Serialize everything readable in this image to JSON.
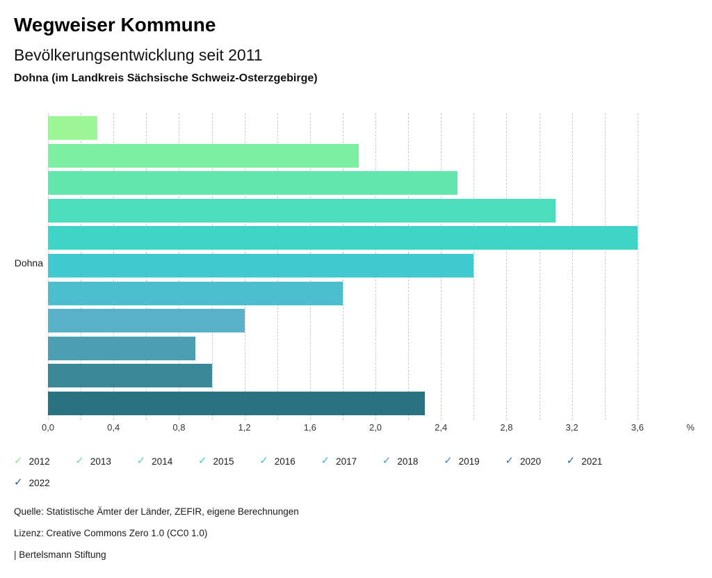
{
  "header": {
    "app_title": "Wegweiser Kommune",
    "chart_title": "Bevölkerungsentwicklung seit 2011",
    "region_subtitle": "Dohna (im Landkreis Sächsische Schweiz-Osterzgebirge)"
  },
  "chart_data": {
    "type": "bar",
    "orientation": "horizontal",
    "title": "Bevölkerungsentwicklung seit 2011",
    "region_label": "Dohna",
    "categories": [
      "2012",
      "2013",
      "2014",
      "2015",
      "2016",
      "2017",
      "2018",
      "2019",
      "2020",
      "2021",
      "2022"
    ],
    "values": [
      0.3,
      1.9,
      2.5,
      3.1,
      3.6,
      2.6,
      1.8,
      1.2,
      0.9,
      1.0,
      2.3
    ],
    "unit": "%",
    "xlim": [
      0,
      3.6
    ],
    "gridline_step": 0.2,
    "grid": "vertical-dashed",
    "x_ticks": [
      {
        "value": 0.0,
        "label": "0,0"
      },
      {
        "value": 0.4,
        "label": "0,4"
      },
      {
        "value": 0.8,
        "label": "0,8"
      },
      {
        "value": 1.2,
        "label": "1,2"
      },
      {
        "value": 1.6,
        "label": "1,6"
      },
      {
        "value": 2.0,
        "label": "2,0"
      },
      {
        "value": 2.4,
        "label": "2,4"
      },
      {
        "value": 2.8,
        "label": "2,8"
      },
      {
        "value": 3.2,
        "label": "3,2"
      },
      {
        "value": 3.6,
        "label": "3,6"
      }
    ],
    "bar_colors": [
      "#9BF795",
      "#7DEFA1",
      "#61E7AD",
      "#4BDEBA",
      "#3ED5C6",
      "#40C9CE",
      "#4DBECD",
      "#57B1C8",
      "#4A9FB2",
      "#3A8897",
      "#2A7181"
    ],
    "legend_position": "bottom"
  },
  "legend": {
    "items": [
      {
        "label": "2012",
        "color": "#8FE98F"
      },
      {
        "label": "2013",
        "color": "#62E09C"
      },
      {
        "label": "2014",
        "color": "#48D9AE"
      },
      {
        "label": "2015",
        "color": "#3BD1C0"
      },
      {
        "label": "2016",
        "color": "#3DC5CF"
      },
      {
        "label": "2017",
        "color": "#45B1D6"
      },
      {
        "label": "2018",
        "color": "#419FD1"
      },
      {
        "label": "2019",
        "color": "#3A8FC4"
      },
      {
        "label": "2020",
        "color": "#3279AD"
      },
      {
        "label": "2021",
        "color": "#2B6795"
      },
      {
        "label": "2022",
        "color": "#275E7E"
      }
    ],
    "check_icon": "✓"
  },
  "footer": {
    "source": "Quelle: Statistische Ämter der Länder, ZEFIR, eigene Berechnungen",
    "license": "Lizenz: Creative Commons Zero 1.0 (CC0 1.0)",
    "attribution": "| Bertelsmann Stiftung"
  },
  "colors": {
    "background": "#ffffff",
    "gridline": "#c9c9c9",
    "text": "#111111"
  }
}
